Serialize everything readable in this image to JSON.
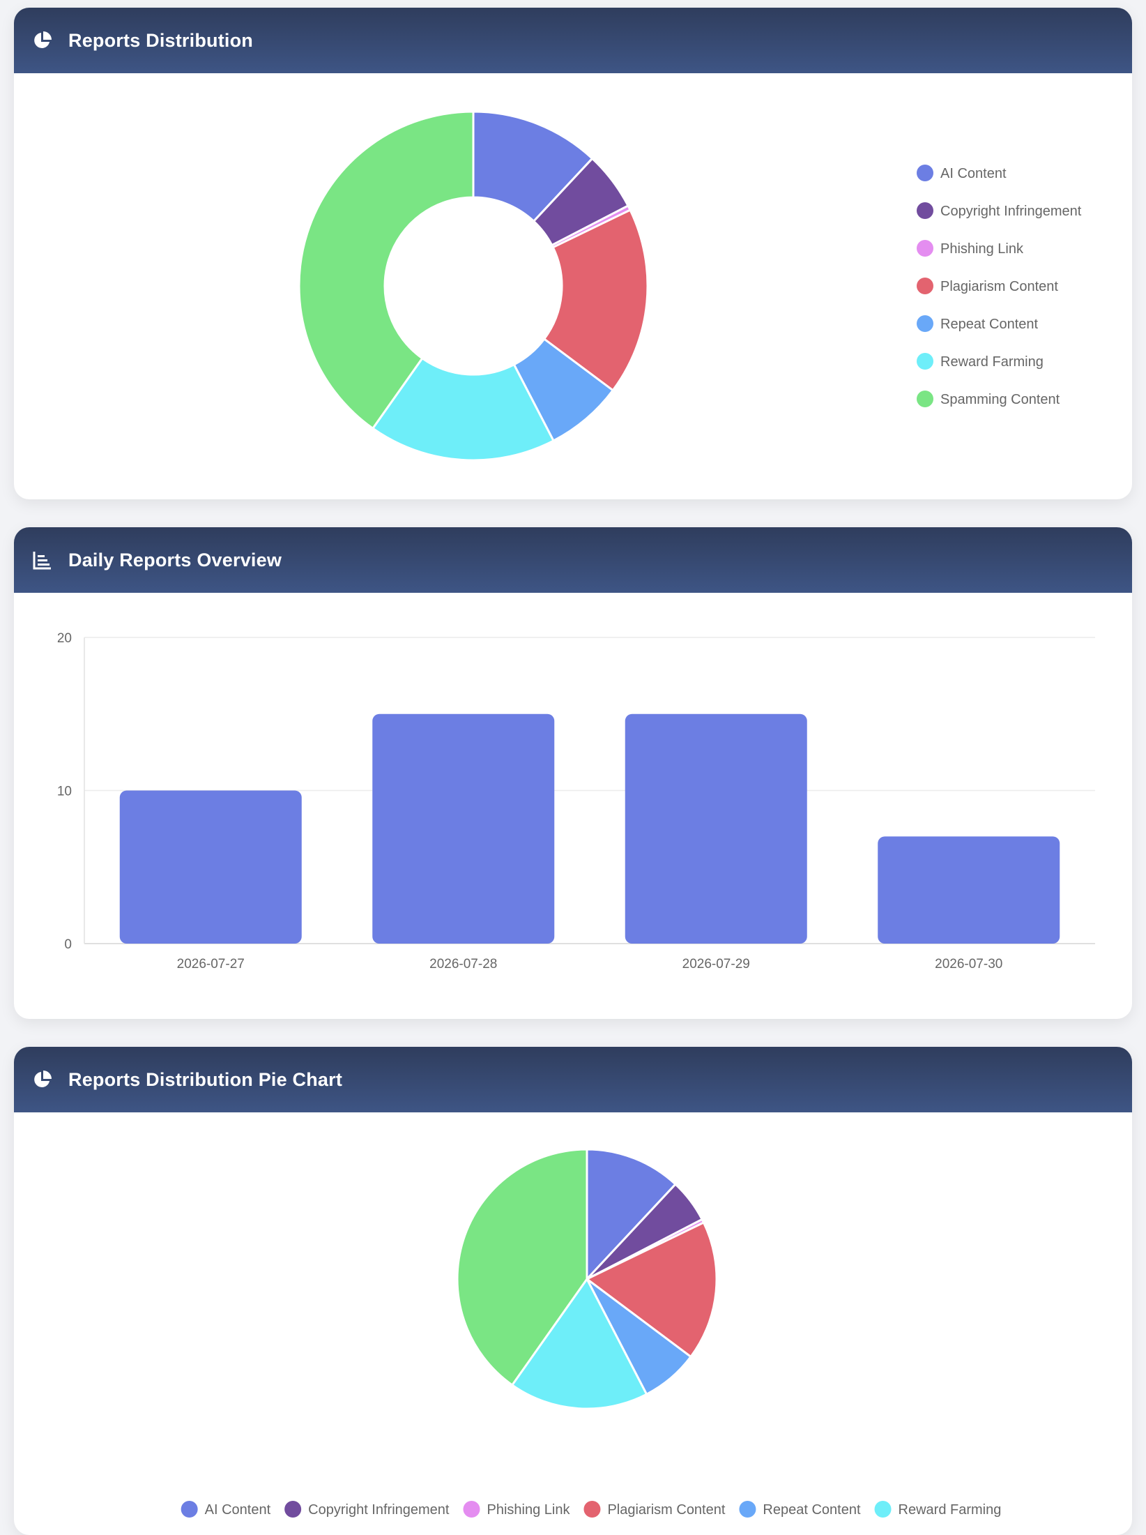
{
  "colors": {
    "header_start": "#2f3d5d",
    "header_end": "#3e5585",
    "bar": "#6c7ee3"
  },
  "cards": {
    "donut": {
      "title": "Reports Distribution",
      "icon": "chart-pie-icon"
    },
    "bar": {
      "title": "Daily Reports Overview",
      "icon": "chart-bar-icon"
    },
    "pie": {
      "title": "Reports Distribution Pie Chart",
      "icon": "chart-pie-icon"
    }
  },
  "chart_data": [
    {
      "type": "pie",
      "variant": "donut",
      "labels": [
        "AI Content",
        "Copyright Infringement",
        "Phishing Link",
        "Plagiarism Content",
        "Repeat Content",
        "Reward Farming",
        "Spamming Content"
      ],
      "values": [
        11,
        5,
        0.4,
        16,
        6.6,
        16,
        37
      ],
      "colors": [
        "#6c7ee3",
        "#714c9e",
        "#e48df0",
        "#e3636f",
        "#69a8f8",
        "#6eeef9",
        "#7ae584"
      ],
      "legend": "right"
    },
    {
      "type": "bar",
      "categories": [
        "2026-07-27",
        "2026-07-28",
        "2026-07-29",
        "2026-07-30"
      ],
      "values": [
        10,
        15,
        15,
        7
      ],
      "ylim": [
        0,
        20
      ],
      "yticks": [
        0,
        10,
        20
      ],
      "grid": true
    },
    {
      "type": "pie",
      "labels": [
        "AI Content",
        "Copyright Infringement",
        "Phishing Link",
        "Plagiarism Content",
        "Repeat Content",
        "Reward Farming",
        "Spamming Content"
      ],
      "values": [
        11,
        5,
        0.4,
        16,
        6.6,
        16,
        37
      ],
      "colors": [
        "#6c7ee3",
        "#714c9e",
        "#e48df0",
        "#e3636f",
        "#69a8f8",
        "#6eeef9",
        "#7ae584"
      ],
      "legend": "bottom"
    }
  ]
}
